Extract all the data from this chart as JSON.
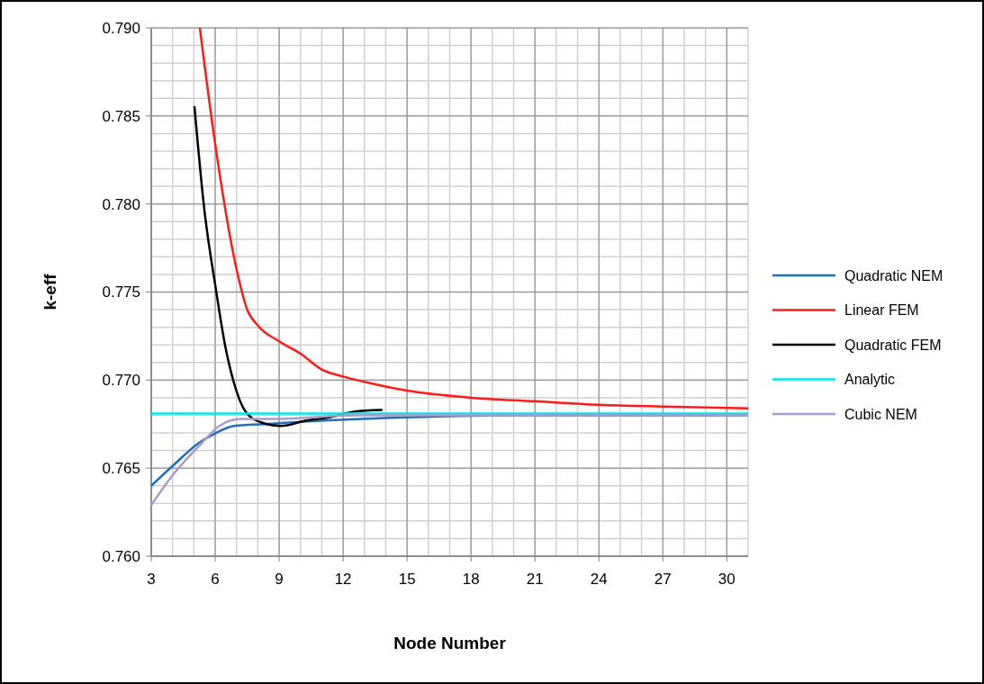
{
  "chart_data": {
    "type": "line",
    "xlabel": "Node Number",
    "ylabel": "k-eff",
    "xlim": [
      3,
      31
    ],
    "xticks": [
      3,
      6,
      9,
      12,
      15,
      18,
      21,
      24,
      27,
      30
    ],
    "ylim": [
      0.76,
      0.79
    ],
    "yticks": [
      {
        "value": 0.76,
        "label": "0.760"
      },
      {
        "value": 0.765,
        "label": "0.765"
      },
      {
        "value": 0.77,
        "label": "0.770"
      },
      {
        "value": 0.775,
        "label": "0.775"
      },
      {
        "value": 0.78,
        "label": "0.780"
      },
      {
        "value": 0.785,
        "label": "0.785"
      },
      {
        "value": 0.79,
        "label": "0.790"
      }
    ],
    "grid": true,
    "legend": "right",
    "marker": "none",
    "line_style": "solid",
    "series": [
      {
        "name": "Quadratic NEM",
        "color": "#1f6fc0",
        "x": [
          3,
          4.07,
          5.2,
          6.04,
          6.89,
          8.3,
          11.1,
          15.3,
          20,
          25,
          31
        ],
        "values": [
          0.764,
          0.7652,
          0.7664,
          0.767,
          0.7674,
          0.7675,
          0.7677,
          0.7679,
          0.768,
          0.768,
          0.768
        ]
      },
      {
        "name": "Linear FEM",
        "color": "#ff1a1a",
        "x": [
          5.28,
          6,
          7,
          7.5,
          8,
          9,
          10,
          11,
          12,
          13,
          15,
          18,
          21,
          24,
          27,
          31
        ],
        "values": [
          0.79,
          0.7834,
          0.7763,
          0.774,
          0.7731,
          0.7722,
          0.7715,
          0.7706,
          0.7702,
          0.7699,
          0.7694,
          0.769,
          0.7688,
          0.7686,
          0.7685,
          0.7684
        ]
      },
      {
        "name": "Quadratic FEM",
        "color": "#000000",
        "x": [
          5.03,
          5.48,
          6.04,
          6.46,
          6.89,
          7.43,
          8.15,
          9.08,
          10.26,
          11.4,
          12.5,
          13.8
        ],
        "values": [
          0.7855,
          0.7798,
          0.7751,
          0.772,
          0.7698,
          0.7682,
          0.7676,
          0.7674,
          0.7677,
          0.7679,
          0.7682,
          0.7683
        ]
      },
      {
        "name": "Analytic",
        "color": "#00e5ee",
        "x": [
          3,
          31
        ],
        "values": [
          0.7681,
          0.7681
        ]
      },
      {
        "name": "Cubic NEM",
        "color": "#a99cc8",
        "x": [
          3,
          4.07,
          5.2,
          6.2,
          7.18,
          9,
          12.5,
          18,
          25,
          31
        ],
        "values": [
          0.7629,
          0.7647,
          0.7662,
          0.7674,
          0.7678,
          0.7678,
          0.768,
          0.768,
          0.768,
          0.768
        ]
      }
    ]
  }
}
